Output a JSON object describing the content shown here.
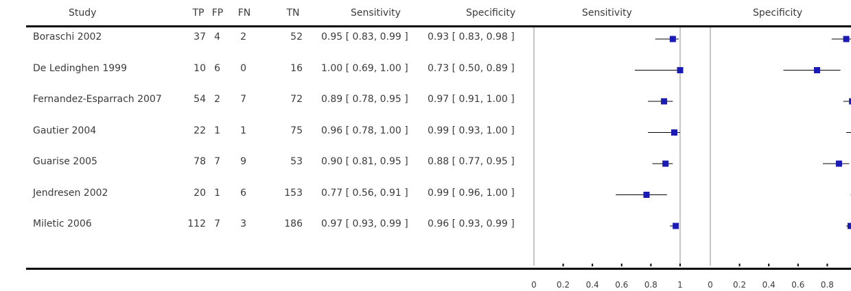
{
  "headers": {
    "study": "Study",
    "tp": "TP",
    "fp": "FP",
    "fn": "FN",
    "tn": "TN",
    "sensitivity": "Sensitivity",
    "specificity": "Specificity",
    "plot_sensitivity": "Sensitivity",
    "plot_specificity": "Specificity"
  },
  "chart_data": {
    "type": "forest",
    "colors": {
      "marker": "#1a1ab5",
      "ci_line": "#000000",
      "ref_line": "#a0a0a0"
    },
    "xlim": [
      0,
      1
    ],
    "sensitivity_ticks": [
      "0",
      "0.2",
      "0.4",
      "0.6",
      "0.8",
      "1"
    ],
    "specificity_ticks": [
      "0",
      "0.2",
      "0.4",
      "0.6",
      "0.8"
    ],
    "studies": [
      {
        "study": "Boraschi 2002",
        "tp": "37",
        "fp": "4",
        "fn": "2",
        "tn": "52",
        "sens_text": "0.95 [ 0.83, 0.99 ]",
        "spec_text": "0.93 [ 0.83, 0.98 ]",
        "sens": [
          0.95,
          0.83,
          0.99
        ],
        "spec": [
          0.93,
          0.83,
          0.98
        ]
      },
      {
        "study": "De Ledinghen 1999",
        "tp": "10",
        "fp": "6",
        "fn": "0",
        "tn": "16",
        "sens_text": "1.00 [ 0.69, 1.00 ]",
        "spec_text": "0.73 [ 0.50, 0.89 ]",
        "sens": [
          1.0,
          0.69,
          1.0
        ],
        "spec": [
          0.73,
          0.5,
          0.89
        ]
      },
      {
        "study": "Fernandez-Esparrach 2007",
        "tp": "54",
        "fp": "2",
        "fn": "7",
        "tn": "72",
        "sens_text": "0.89 [ 0.78, 0.95 ]",
        "spec_text": "0.97 [ 0.91, 1.00 ]",
        "sens": [
          0.89,
          0.78,
          0.95
        ],
        "spec": [
          0.97,
          0.91,
          1.0
        ]
      },
      {
        "study": "Gautier 2004",
        "tp": "22",
        "fp": "1",
        "fn": "1",
        "tn": "75",
        "sens_text": "0.96 [ 0.78, 1.00 ]",
        "spec_text": "0.99 [ 0.93, 1.00 ]",
        "sens": [
          0.96,
          0.78,
          1.0
        ],
        "spec": [
          0.99,
          0.93,
          1.0
        ]
      },
      {
        "study": "Guarise 2005",
        "tp": "78",
        "fp": "7",
        "fn": "9",
        "tn": "53",
        "sens_text": "0.90 [ 0.81, 0.95 ]",
        "spec_text": "0.88 [ 0.77, 0.95 ]",
        "sens": [
          0.9,
          0.81,
          0.95
        ],
        "spec": [
          0.88,
          0.77,
          0.95
        ]
      },
      {
        "study": "Jendresen 2002",
        "tp": "20",
        "fp": "1",
        "fn": "6",
        "tn": "153",
        "sens_text": "0.77 [ 0.56, 0.91 ]",
        "spec_text": "0.99 [ 0.96, 1.00 ]",
        "sens": [
          0.77,
          0.56,
          0.91
        ],
        "spec": [
          0.99,
          0.96,
          1.0
        ]
      },
      {
        "study": "Miletic 2006",
        "tp": "112",
        "fp": "7",
        "fn": "3",
        "tn": "186",
        "sens_text": "0.97 [ 0.93, 0.99 ]",
        "spec_text": "0.96 [ 0.93, 0.99 ]",
        "sens": [
          0.97,
          0.93,
          0.99
        ],
        "spec": [
          0.96,
          0.93,
          0.99
        ]
      }
    ]
  }
}
